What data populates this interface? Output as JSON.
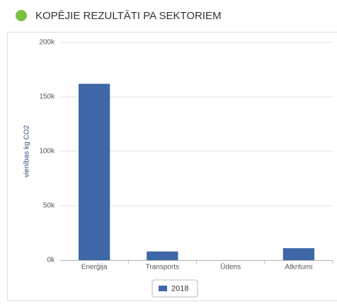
{
  "chart_data": {
    "type": "bar",
    "title": "KOPĒJIE REZULTĀTI PA SEKTORIEM",
    "y_label": "vienības kg CO2",
    "categories": [
      "Enerģija",
      "Transports",
      "Ūdens",
      "Atkritumi"
    ],
    "series": [
      {
        "name": "2018",
        "color": "#3d67a6",
        "values": [
          162000,
          8000,
          0,
          11000
        ]
      }
    ],
    "ylim": [
      0,
      200000
    ],
    "yticks": [
      {
        "value": 0,
        "label": "0k"
      },
      {
        "value": 50000,
        "label": "50k"
      },
      {
        "value": 100000,
        "label": "100k"
      },
      {
        "value": 150000,
        "label": "150k"
      },
      {
        "value": 200000,
        "label": "200k"
      }
    ],
    "grid": true,
    "legend": "bottom"
  }
}
